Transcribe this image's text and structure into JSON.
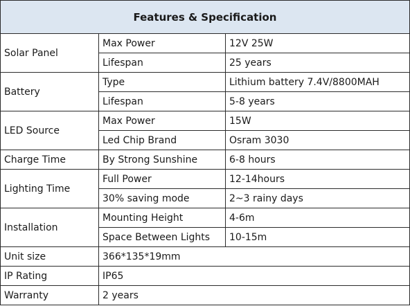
{
  "title": "Features & Specification",
  "rows": {
    "solar_panel": {
      "category": "Solar Panel",
      "items": [
        {
          "label": "Max Power",
          "value": "12V 25W"
        },
        {
          "label": "Lifespan",
          "value": "25 years"
        }
      ]
    },
    "battery": {
      "category": "Battery",
      "items": [
        {
          "label": "Type",
          "value": "Lithium battery 7.4V/8800MAH"
        },
        {
          "label": "Lifespan",
          "value": "5-8 years"
        }
      ]
    },
    "led_source": {
      "category": "LED Source",
      "items": [
        {
          "label": "Max Power",
          "value": "15W"
        },
        {
          "label": "Led Chip Brand",
          "value": "Osram 3030"
        }
      ]
    },
    "charge_time": {
      "category": "Charge Time",
      "label": "By Strong Sunshine",
      "value": "6-8 hours"
    },
    "lighting_time": {
      "category": "Lighting Time",
      "items": [
        {
          "label": "Full Power",
          "value": "12-14hours"
        },
        {
          "label": "30% saving mode",
          "value": "2~3 rainy days"
        }
      ]
    },
    "installation": {
      "category": "Installation",
      "items": [
        {
          "label": "Mounting Height",
          "value": "4-6m"
        },
        {
          "label": "Space Between Lights",
          "value": "10-15m"
        }
      ]
    },
    "unit_size": {
      "category": "Unit size",
      "value": "366*135*19mm"
    },
    "ip_rating": {
      "category": "IP Rating",
      "value": "IP65"
    },
    "warranty": {
      "category": "Warranty",
      "value": "2 years"
    }
  }
}
